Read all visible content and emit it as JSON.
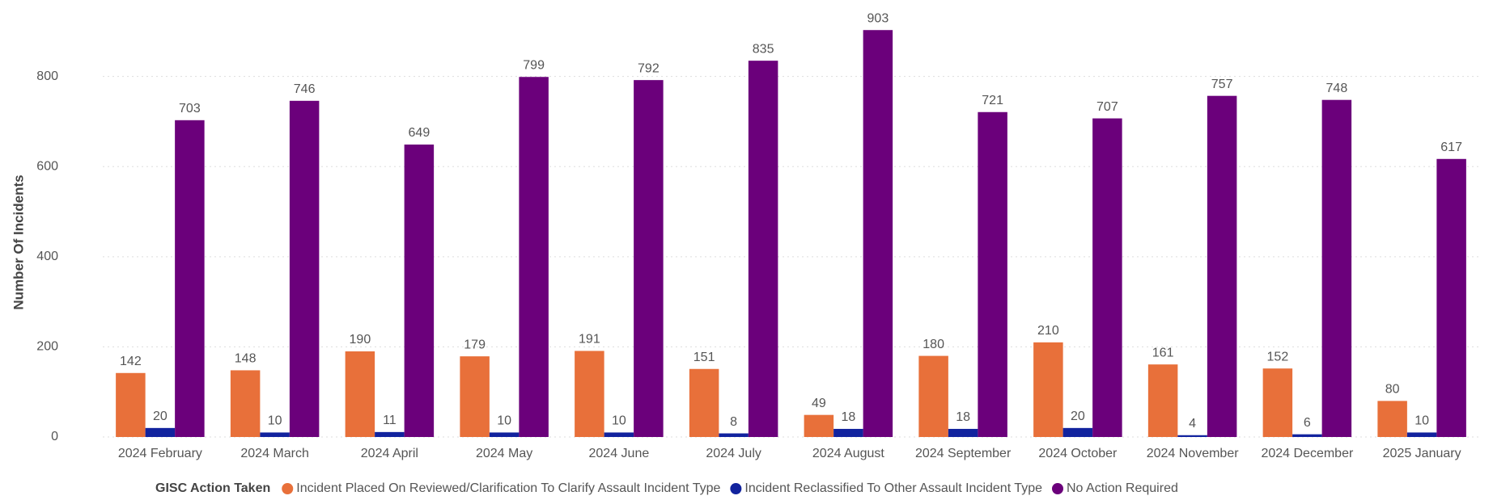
{
  "chart_data": {
    "type": "bar",
    "y_label": "Number Of Incidents",
    "legend_title": "GISC Action Taken",
    "categories": [
      "2024 February",
      "2024 March",
      "2024 April",
      "2024 May",
      "2024 June",
      "2024 July",
      "2024 August",
      "2024 September",
      "2024 October",
      "2024 November",
      "2024 December",
      "2025 January"
    ],
    "series": [
      {
        "name": "Incident Placed On Reviewed/Clarification To Clarify Assault Incident Type",
        "color": "#e8703a",
        "values": [
          142,
          148,
          190,
          179,
          191,
          151,
          49,
          180,
          210,
          161,
          152,
          80
        ]
      },
      {
        "name": "Incident Reclassified To Other Assault Incident Type",
        "color": "#12239e",
        "values": [
          20,
          10,
          11,
          10,
          10,
          8,
          18,
          18,
          20,
          4,
          6,
          10
        ]
      },
      {
        "name": "No Action Required",
        "color": "#6b007b",
        "values": [
          703,
          746,
          649,
          799,
          792,
          835,
          903,
          721,
          707,
          757,
          748,
          617
        ]
      }
    ],
    "ylim": [
      0,
      950
    ],
    "yticks": [
      0,
      200,
      400,
      600,
      800
    ],
    "grid": true,
    "legend": "bottom"
  }
}
